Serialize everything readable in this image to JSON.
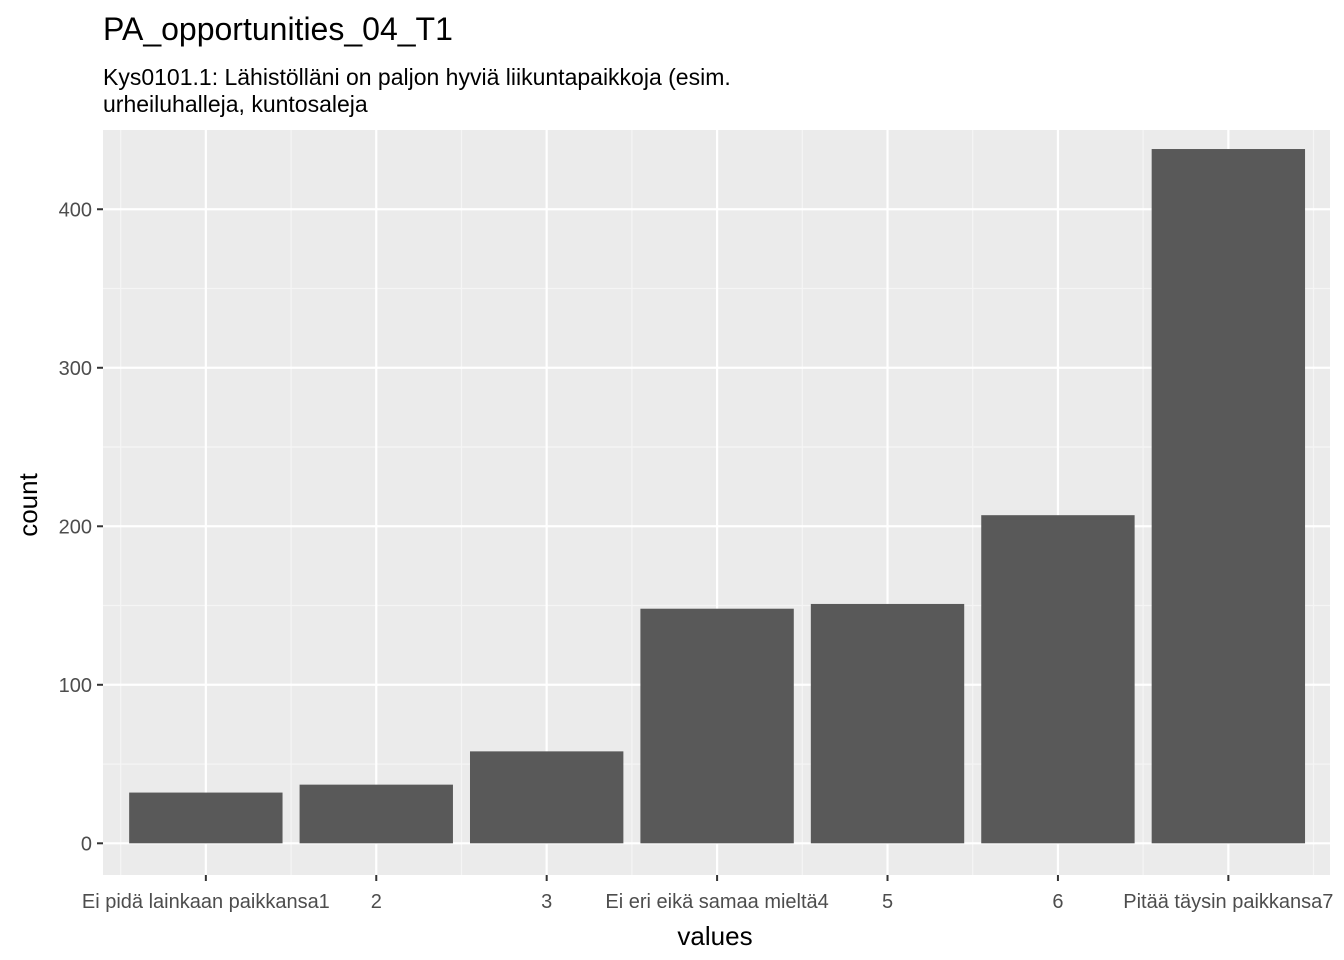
{
  "chart_data": {
    "type": "bar",
    "title": "PA_opportunities_04_T1",
    "subtitle_lines": [
      "Kys0101.1: Lähistölläni on paljon hyviä liikuntapaikkoja (esim.",
      "urheiluhalleja, kuntosaleja"
    ],
    "xlabel": "values",
    "ylabel": "count",
    "categories": [
      "Ei pidä lainkaan paikkansa1",
      "2",
      "3",
      "Ei eri eikä samaa mieltä4",
      "5",
      "6",
      "Pitää täysin paikkansa7"
    ],
    "values": [
      32,
      37,
      58,
      148,
      151,
      207,
      438
    ],
    "ylim": [
      -20,
      450
    ],
    "yticks": [
      0,
      100,
      200,
      300,
      400
    ],
    "grid": true,
    "legend": "none",
    "colors": {
      "bar": "#595959",
      "panel": "#ebebeb",
      "grid_major": "#ffffff",
      "grid_minor": "#f5f5f5",
      "tick_text": "#4d4d4d",
      "tick_mark": "#333333"
    }
  }
}
